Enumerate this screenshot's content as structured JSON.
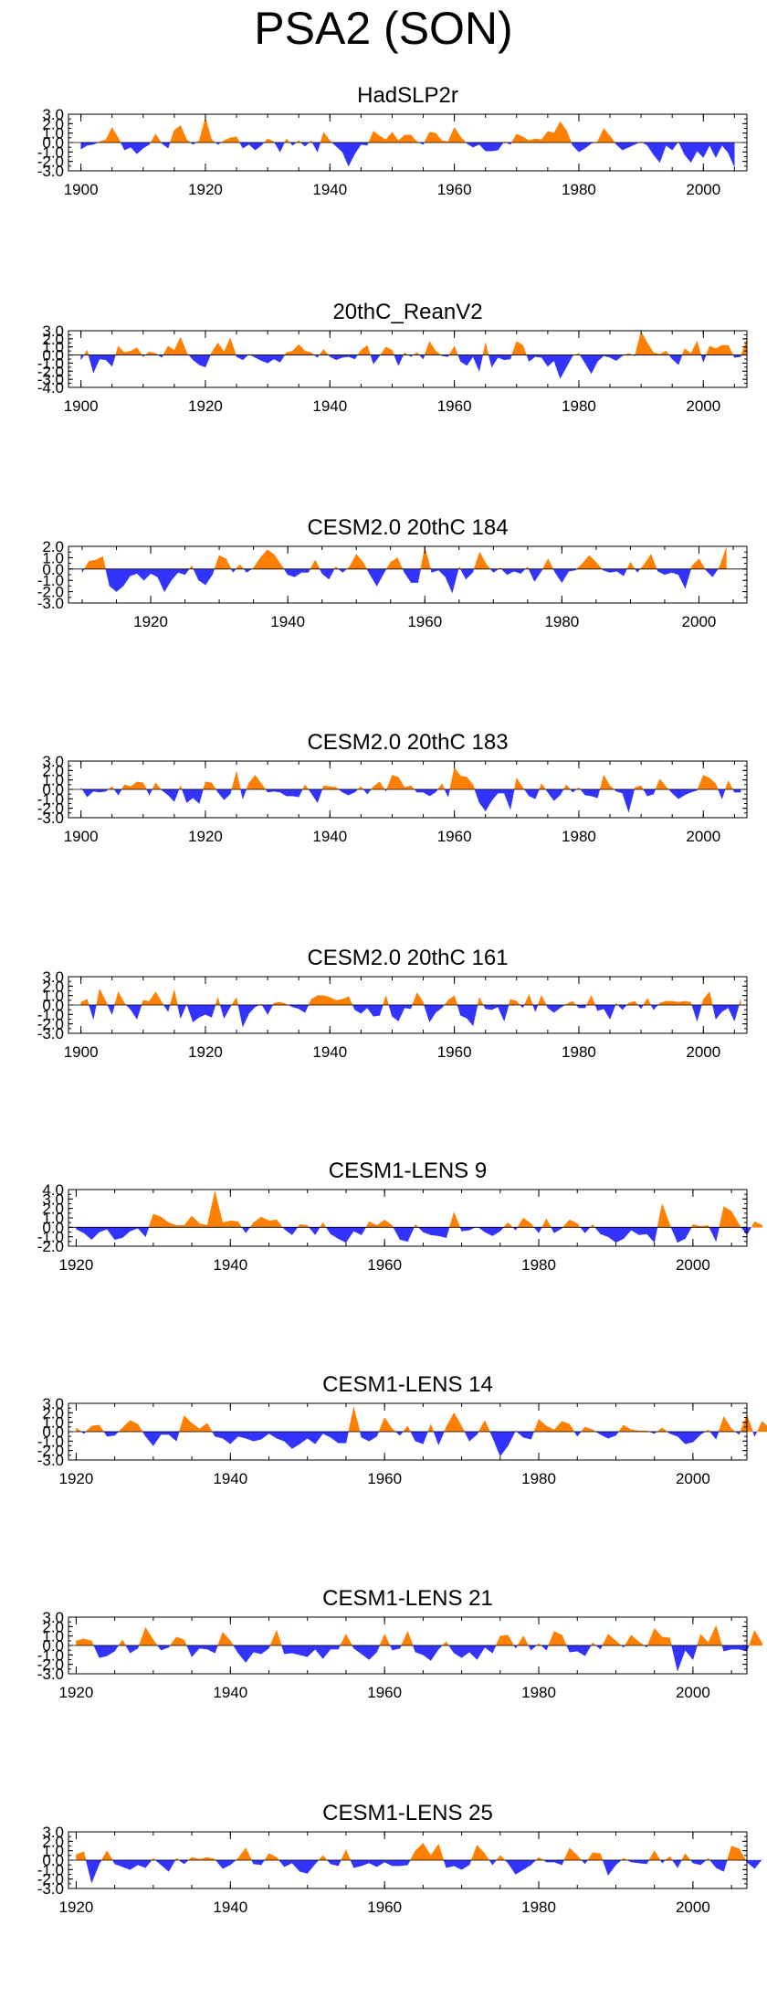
{
  "title": "PSA2 (SON)",
  "colors": {
    "positive": "#ff8000",
    "negative": "#3333ff",
    "axis": "#000000"
  },
  "chart_data": [
    {
      "type": "area",
      "title": "HadSLP2r",
      "xlim": [
        1898,
        2007
      ],
      "ylim": [
        -3.0,
        3.0
      ],
      "yticks": [
        "3.0",
        "2.0",
        "1.0",
        "0.0",
        "-1.0",
        "-2.0",
        "-3.0"
      ],
      "xticks": [
        1900,
        1920,
        1940,
        1960,
        1980,
        2000
      ],
      "x_start": 1900,
      "values": [
        -0.7,
        -0.3,
        -0.2,
        0.1,
        0.3,
        1.6,
        0.5,
        -0.8,
        -0.5,
        -1.2,
        -0.6,
        -0.2,
        0.9,
        -0.1,
        -0.6,
        1.3,
        1.8,
        0.3,
        -0.2,
        0.2,
        2.6,
        0.3,
        -0.2,
        0.2,
        0.5,
        0.6,
        -0.6,
        -0.2,
        -0.8,
        -0.3,
        0.4,
        0.1,
        -1.0,
        0.4,
        -0.3,
        0.2,
        -0.4,
        0.2,
        -1.0,
        1.1,
        0.2,
        -0.4,
        -1.0,
        -2.5,
        -1.2,
        -0.2,
        -0.3,
        1.2,
        0.7,
        0.3,
        1.1,
        0.2,
        0.8,
        0.8,
        0.1,
        -0.2,
        1.1,
        1.0,
        0.2,
        0.1,
        1.6,
        0.6,
        -0.1,
        -0.5,
        -0.2,
        -0.9,
        -0.9,
        -0.8,
        0.1,
        -0.2,
        0.9,
        0.6,
        0.2,
        0.4,
        0.3,
        1.2,
        1.0,
        2.2,
        1.3,
        -0.3,
        -1.0,
        -0.6,
        -0.1,
        0.1,
        1.5,
        0.7,
        -0.2,
        -0.8,
        -0.5,
        -0.2,
        0.1,
        -0.3,
        -1.3,
        -2.1,
        -0.3,
        -0.8,
        0.1,
        -1.3,
        -2.1,
        -0.9,
        -1.6,
        -0.3,
        -1.6,
        -0.3,
        -1.1,
        -2.6
      ]
    },
    {
      "type": "area",
      "title": "20thC_ReanV2",
      "xlim": [
        1898,
        2007
      ],
      "ylim": [
        -4.0,
        3.0
      ],
      "yticks": [
        "3.0",
        "2.0",
        "1.0",
        "0.0",
        "-1.0",
        "-2.0",
        "-3.0",
        "-4.0"
      ],
      "xticks": [
        1900,
        1920,
        1940,
        1960,
        1980,
        2000
      ],
      "x_start": 1900,
      "values": [
        -0.6,
        0.6,
        -2.2,
        -0.5,
        -0.6,
        -1.4,
        1.1,
        0.3,
        0.5,
        0.9,
        -0.2,
        0.4,
        0.2,
        -0.3,
        1.1,
        0.6,
        2.2,
        0.3,
        -0.6,
        -1.2,
        -1.5,
        0.3,
        1.5,
        0.4,
        2.1,
        -0.2,
        -0.6,
        0.1,
        -0.3,
        -0.7,
        -1.0,
        -0.5,
        -0.9,
        0.3,
        0.5,
        1.3,
        0.5,
        0.3,
        -0.3,
        0.7,
        -0.2,
        -0.6,
        -0.3,
        -0.2,
        -0.5,
        0.6,
        1.2,
        -1.1,
        -0.1,
        1.0,
        0.6,
        -1.3,
        0.3,
        -0.2,
        0.3,
        -0.5,
        1.7,
        0.5,
        -0.1,
        -0.2,
        1.1,
        -0.8,
        -1.3,
        -0.2,
        -2.0,
        1.5,
        -1.5,
        -0.3,
        -0.6,
        -0.5,
        1.7,
        1.2,
        -0.8,
        -0.2,
        -0.3,
        -1.4,
        -0.7,
        -2.9,
        -1.5,
        -0.1,
        0.2,
        -1.0,
        -2.3,
        -0.8,
        -0.1,
        -0.3,
        -0.7,
        -0.1,
        0.2,
        -0.1,
        2.9,
        1.5,
        0.3,
        0.1,
        0.5,
        -0.5,
        -1.2,
        0.8,
        0.2,
        1.7,
        -0.9,
        1.1,
        0.8,
        1.2,
        1.2,
        -0.3,
        -0.2,
        2.0
      ]
    },
    {
      "type": "area",
      "title": "CESM2.0 20thC 184",
      "xlim": [
        1908,
        2007
      ],
      "ylim": [
        -3.0,
        2.0
      ],
      "yticks": [
        "2.0",
        "1.0",
        "0.0",
        "-1.0",
        "-2.0",
        "-3.0"
      ],
      "xticks": [
        1920,
        1940,
        1960,
        1980,
        2000
      ],
      "x_start": 1910,
      "values": [
        -0.3,
        0.7,
        0.8,
        1.1,
        -1.5,
        -2.0,
        -1.5,
        -0.6,
        -0.4,
        -1.0,
        -0.4,
        -0.7,
        -2.0,
        -1.0,
        -0.3,
        -0.5,
        0.3,
        -1.0,
        -1.4,
        -0.5,
        1.2,
        0.9,
        -0.3,
        0.4,
        -0.3,
        0.1,
        1.0,
        1.7,
        1.3,
        0.4,
        -0.5,
        -0.7,
        -0.3,
        -0.3,
        0.8,
        -0.4,
        -0.9,
        0.2,
        -0.3,
        0.2,
        1.3,
        0.6,
        -0.5,
        -1.5,
        -0.4,
        0.6,
        1.0,
        -0.3,
        -1.2,
        -1.2,
        1.9,
        -0.3,
        -0.1,
        -0.7,
        -2.1,
        0.2,
        -0.9,
        -0.3,
        1.5,
        0.4,
        -0.3,
        0.1,
        -0.5,
        -0.2,
        -0.4,
        0.2,
        -1.1,
        -0.2,
        0.9,
        -0.3,
        -1.2,
        -0.2,
        -0.1,
        0.5,
        1.2,
        0.6,
        -0.1,
        -0.3,
        -0.2,
        -0.6,
        0.6,
        -0.3,
        0.4,
        1.3,
        -0.2,
        -0.5,
        -0.3,
        -0.5,
        -1.7,
        0.3,
        0.9,
        -0.1,
        -0.7,
        0.2,
        1.9
      ]
    },
    {
      "type": "area",
      "title": "CESM2.0 20thC 183",
      "xlim": [
        1898,
        2007
      ],
      "ylim": [
        -3.0,
        3.0
      ],
      "yticks": [
        "3.0",
        "2.0",
        "1.0",
        "0.0",
        "-1.0",
        "-2.0",
        "-3.0"
      ],
      "xticks": [
        1900,
        1920,
        1940,
        1960,
        1980,
        2000
      ],
      "x_start": 1900,
      "values": [
        0.2,
        -0.8,
        -0.2,
        -0.3,
        -0.2,
        0.3,
        -0.6,
        0.5,
        0.3,
        0.8,
        0.7,
        -0.6,
        0.7,
        -0.1,
        -0.6,
        -1.3,
        0.4,
        -1.4,
        -0.9,
        -1.5,
        0.8,
        0.7,
        -0.3,
        -1.1,
        -0.5,
        1.9,
        -1.0,
        0.7,
        1.5,
        0.6,
        -0.3,
        -0.2,
        -0.3,
        -0.7,
        -0.7,
        -0.8,
        0.5,
        -0.4,
        -1.4,
        0.4,
        0.3,
        0.2,
        -0.3,
        -0.6,
        -0.3,
        0.3,
        -0.5,
        0.3,
        0.8,
        -0.2,
        1.5,
        1.3,
        0.2,
        0.4,
        -0.3,
        -0.3,
        -0.7,
        -0.3,
        0.6,
        -0.8,
        2.3,
        1.4,
        1.3,
        0.5,
        -1.4,
        -2.3,
        -1.2,
        -0.4,
        -0.4,
        -2.1,
        1.2,
        0.2,
        -0.7,
        -1.0,
        0.6,
        -0.3,
        -1.2,
        -0.6,
        0.5,
        -0.3,
        0.2,
        -0.6,
        -0.7,
        -0.9,
        1.5,
        0.4,
        -0.2,
        -0.4,
        -2.4,
        0.2,
        0.4,
        -0.7,
        -0.5,
        1.1,
        0.3,
        -0.4,
        -1.0,
        -0.6,
        -0.3,
        -0.1,
        1.5,
        1.2,
        0.6,
        -1.0,
        0.9,
        -0.3,
        -0.3
      ]
    },
    {
      "type": "area",
      "title": "CESM2.0 20thC 161",
      "xlim": [
        1898,
        2007
      ],
      "ylim": [
        -3.0,
        3.0
      ],
      "yticks": [
        "3.0",
        "2.0",
        "1.0",
        "0.0",
        "-1.0",
        "-2.0",
        "-3.0"
      ],
      "xticks": [
        1900,
        1920,
        1940,
        1960,
        1980,
        2000
      ],
      "x_start": 1900,
      "values": [
        0.3,
        0.6,
        -1.5,
        1.7,
        0.4,
        -1.0,
        1.4,
        0.2,
        -0.5,
        -1.5,
        0.5,
        0.4,
        1.4,
        0.3,
        -0.7,
        1.6,
        -1.4,
        0.1,
        -1.8,
        -1.3,
        -1.0,
        -1.3,
        0.8,
        -1.4,
        -0.2,
        0.8,
        -2.3,
        -0.9,
        -0.2,
        0.1,
        -1.0,
        0.2,
        0.3,
        0.1,
        -0.2,
        -0.4,
        -0.8,
        0.6,
        1.0,
        1.0,
        0.8,
        0.5,
        0.6,
        0.9,
        -0.5,
        -0.9,
        -0.3,
        -1.2,
        -1.1,
        1.0,
        -1.2,
        -1.7,
        -0.3,
        -0.4,
        1.3,
        0.3,
        -1.8,
        -0.8,
        -0.3,
        0.5,
        1.0,
        -1.1,
        -1.4,
        -2.2,
        0.8,
        -0.4,
        -0.5,
        -0.2,
        -1.7,
        0.6,
        0.4,
        -0.3,
        1.1,
        -0.7,
        1.0,
        -0.3,
        -0.8,
        -0.3,
        0.1,
        0.4,
        -0.3,
        -0.3,
        1.0,
        -0.6,
        -0.4,
        -1.5,
        0.2,
        -0.5,
        0.2,
        0.4,
        -0.4,
        0.7,
        -0.5,
        0.2,
        0.4,
        0.4,
        0.3,
        0.4,
        0.3,
        -1.7,
        0.6,
        1.4,
        -1.5,
        -0.7,
        -0.3,
        -1.7,
        0.6
      ]
    },
    {
      "type": "area",
      "title": "CESM1-LENS 9",
      "xlim": [
        1919,
        2007
      ],
      "ylim": [
        -2.0,
        4.0
      ],
      "yticks": [
        "4.0",
        "3.0",
        "2.0",
        "1.0",
        "0.0",
        "-1.0",
        "-2.0"
      ],
      "xticks": [
        1920,
        1940,
        1960,
        1980,
        2000
      ],
      "x_start": 1920,
      "values": [
        -0.2,
        -0.6,
        -1.3,
        -0.5,
        -0.2,
        -1.3,
        -1.1,
        -0.4,
        -0.1,
        -1.0,
        1.4,
        1.1,
        0.5,
        0.2,
        0.2,
        1.2,
        0.4,
        0.2,
        3.8,
        0.5,
        0.7,
        0.6,
        -0.6,
        0.5,
        1.1,
        0.7,
        0.8,
        -0.2,
        -0.8,
        0.3,
        0.2,
        -0.8,
        0.5,
        -0.7,
        -1.2,
        -1.6,
        -0.4,
        -0.8,
        0.6,
        0.2,
        0.8,
        0.2,
        -1.3,
        -1.5,
        0.3,
        -0.5,
        -0.8,
        -0.9,
        -1.1,
        1.6,
        -0.4,
        -0.3,
        0.1,
        -0.5,
        -0.9,
        -0.4,
        0.5,
        -0.3,
        1.0,
        0.4,
        -0.6,
        0.9,
        -0.6,
        -0.1,
        0.8,
        0.4,
        -0.6,
        0.3,
        -0.7,
        -1.0,
        -1.6,
        -1.2,
        -0.3,
        -0.8,
        -0.7,
        -1.6,
        2.5,
        0.3,
        -1.6,
        -1.2,
        0.3,
        0.1,
        0.2,
        -1.5,
        2.2,
        1.7,
        0.3,
        -0.8,
        0.6,
        0.2
      ]
    },
    {
      "type": "area",
      "title": "CESM1-LENS 14",
      "xlim": [
        1919,
        2007
      ],
      "ylim": [
        -3.0,
        3.0
      ],
      "yticks": [
        "3.0",
        "2.0",
        "1.0",
        "0.0",
        "-1.0",
        "-2.0",
        "-3.0"
      ],
      "xticks": [
        1920,
        1940,
        1960,
        1980,
        2000
      ],
      "x_start": 1920,
      "values": [
        0.4,
        -0.2,
        0.6,
        0.7,
        -0.5,
        -0.4,
        0.4,
        1.2,
        0.8,
        -0.5,
        -1.5,
        -0.3,
        -0.3,
        -1.0,
        1.7,
        0.9,
        0.3,
        0.9,
        -0.5,
        -0.7,
        -1.3,
        -0.5,
        -0.7,
        -1.0,
        -0.8,
        -0.2,
        -0.7,
        -1.0,
        -1.8,
        -1.3,
        -0.7,
        -1.3,
        -0.2,
        -0.6,
        -1.2,
        -1.2,
        2.6,
        -0.6,
        -1.0,
        -0.5,
        1.5,
        0.3,
        -0.4,
        0.6,
        -1.0,
        -1.3,
        0.8,
        -1.4,
        0.5,
        2.0,
        0.6,
        -1.0,
        -0.3,
        1.2,
        -0.6,
        -2.6,
        -1.5,
        0.1,
        -0.6,
        -0.8,
        1.3,
        0.6,
        0.2,
        1.1,
        0.8,
        -0.5,
        0.5,
        0.2,
        -0.3,
        -0.7,
        -0.4,
        0.7,
        0.2,
        0.1,
        0.1,
        -0.2,
        0.4,
        -0.2,
        -0.5,
        -1.3,
        -1.1,
        -0.3,
        0.2,
        -0.8,
        1.6,
        0.3,
        -0.3,
        1.8,
        -0.5,
        1.1,
        0.3
      ]
    },
    {
      "type": "area",
      "title": "CESM1-LENS 21",
      "xlim": [
        1919,
        2007
      ],
      "ylim": [
        -3.0,
        3.0
      ],
      "yticks": [
        "3.0",
        "2.0",
        "1.0",
        "0.0",
        "-1.0",
        "-2.0",
        "-3.0"
      ],
      "xticks": [
        1920,
        1940,
        1960,
        1980,
        2000
      ],
      "x_start": 1920,
      "values": [
        0.5,
        0.7,
        0.5,
        -1.3,
        -1.1,
        -0.6,
        0.6,
        -0.8,
        -0.3,
        1.9,
        0.6,
        -0.5,
        -0.2,
        0.9,
        0.6,
        -1.2,
        -0.3,
        -0.4,
        -0.8,
        1.4,
        0.5,
        -0.8,
        -1.8,
        -0.7,
        -0.9,
        -0.3,
        1.6,
        -0.9,
        -0.8,
        -1.0,
        -1.2,
        -0.4,
        -1.4,
        -0.4,
        -0.4,
        1.2,
        -0.3,
        -0.9,
        -1.5,
        -0.7,
        1.2,
        -0.5,
        -0.3,
        1.5,
        -0.7,
        -1.0,
        -1.6,
        -0.4,
        0.4,
        -0.8,
        -1.3,
        -0.7,
        -1.5,
        -0.2,
        -0.8,
        1.0,
        1.1,
        -0.3,
        1.0,
        -0.5,
        0.2,
        -0.5,
        1.5,
        1.1,
        -0.7,
        -0.6,
        -1.1,
        0.3,
        -0.4,
        1.2,
        0.5,
        -0.2,
        1.1,
        0.4,
        -0.2,
        1.8,
        0.9,
        0.8,
        -2.7,
        -0.5,
        -1.5,
        1.2,
        0.3,
        2.1,
        -0.6,
        -0.4,
        -0.4,
        -0.6,
        1.6,
        0.2
      ]
    },
    {
      "type": "area",
      "title": "CESM1-LENS 25",
      "xlim": [
        1919,
        2007
      ],
      "ylim": [
        -3.0,
        3.0
      ],
      "yticks": [
        "3.0",
        "2.0",
        "1.0",
        "0.0",
        "-1.0",
        "-2.0",
        "-3.0"
      ],
      "xticks": [
        1920,
        1940,
        1960,
        1980,
        2000
      ],
      "x_start": 1920,
      "values": [
        0.6,
        0.9,
        -2.4,
        -0.4,
        1.0,
        -0.4,
        -0.7,
        -1.0,
        -0.5,
        -0.8,
        0.2,
        -0.5,
        -1.2,
        0.2,
        -0.4,
        0.3,
        0.1,
        0.3,
        0.1,
        -0.9,
        -0.5,
        0.2,
        1.3,
        -0.4,
        -0.5,
        0.7,
        0.3,
        -0.7,
        -0.3,
        -1.2,
        -1.4,
        -0.4,
        0.5,
        -0.4,
        -0.6,
        1.1,
        -0.8,
        -0.6,
        -0.3,
        -0.7,
        -0.2,
        -0.6,
        -0.6,
        -0.5,
        1.0,
        1.8,
        0.5,
        1.7,
        -0.8,
        -0.6,
        -1.0,
        -0.5,
        1.6,
        0.7,
        -0.5,
        0.5,
        -0.3,
        -1.5,
        -1.0,
        -0.5,
        0.3,
        -0.2,
        -0.2,
        -0.5,
        1.3,
        0.5,
        -0.4,
        0.8,
        0.7,
        -1.6,
        -0.5,
        0.2,
        -0.2,
        -0.3,
        -0.4,
        1.0,
        -0.3,
        0.4,
        -0.8,
        0.7,
        -0.3,
        -0.5,
        0.2,
        -0.8,
        -1.2,
        1.5,
        1.2,
        -0.2,
        -0.9,
        0.1
      ]
    }
  ]
}
